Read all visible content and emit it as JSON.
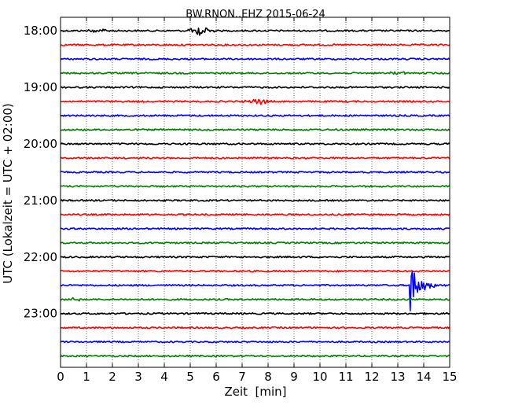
{
  "chart_data": {
    "type": "line",
    "title": "BW.RNON..EHZ 2015-06-24",
    "xlabel": "Zeit  [min]",
    "ylabel": "UTC (Lokalzeit = UTC + 02:00)",
    "xlim": [
      0,
      15
    ],
    "x_ticks": [
      "0",
      "1",
      "2",
      "3",
      "4",
      "5",
      "6",
      "7",
      "8",
      "9",
      "10",
      "11",
      "12",
      "13",
      "14",
      "15"
    ],
    "row_minutes": 15,
    "start_time": "18:00",
    "end_time": "24:00",
    "y_tick_labels": [
      "18:00",
      "19:00",
      "20:00",
      "21:00",
      "22:00",
      "23:00"
    ],
    "grid": "vertical dotted at each minute",
    "trace_colors": [
      "#000000",
      "#ff0000",
      "#0000ff",
      "#008000"
    ],
    "traces": [
      {
        "start": "18:00",
        "color": "#000000",
        "events": [
          {
            "minute": 5.4,
            "amplitude": 0.35
          },
          {
            "minute": 1.5,
            "amplitude": 0.15
          }
        ]
      },
      {
        "start": "18:15",
        "color": "#ff0000",
        "events": []
      },
      {
        "start": "18:30",
        "color": "#0000ff",
        "events": []
      },
      {
        "start": "18:45",
        "color": "#008000",
        "events": [
          {
            "minute": 13.0,
            "amplitude": 0.12
          }
        ]
      },
      {
        "start": "19:00",
        "color": "#000000",
        "events": []
      },
      {
        "start": "19:15",
        "color": "#ff0000",
        "events": [
          {
            "minute": 7.6,
            "amplitude": 0.25
          }
        ]
      },
      {
        "start": "19:30",
        "color": "#0000ff",
        "events": []
      },
      {
        "start": "19:45",
        "color": "#008000",
        "events": []
      },
      {
        "start": "20:00",
        "color": "#000000",
        "events": []
      },
      {
        "start": "20:15",
        "color": "#ff0000",
        "events": []
      },
      {
        "start": "20:30",
        "color": "#0000ff",
        "events": []
      },
      {
        "start": "20:45",
        "color": "#008000",
        "events": []
      },
      {
        "start": "21:00",
        "color": "#000000",
        "events": []
      },
      {
        "start": "21:15",
        "color": "#ff0000",
        "events": []
      },
      {
        "start": "21:30",
        "color": "#0000ff",
        "events": []
      },
      {
        "start": "21:45",
        "color": "#008000",
        "events": []
      },
      {
        "start": "22:00",
        "color": "#000000",
        "events": []
      },
      {
        "start": "22:15",
        "color": "#ff0000",
        "events": []
      },
      {
        "start": "22:30",
        "color": "#0000ff",
        "events": [
          {
            "minute": 13.45,
            "amplitude": 2.3
          }
        ]
      },
      {
        "start": "22:45",
        "color": "#008000",
        "events": [
          {
            "minute": 0.5,
            "amplitude": 0.15
          }
        ]
      },
      {
        "start": "23:00",
        "color": "#000000",
        "events": []
      },
      {
        "start": "23:15",
        "color": "#ff0000",
        "events": []
      },
      {
        "start": "23:30",
        "color": "#0000ff",
        "events": []
      },
      {
        "start": "23:45",
        "color": "#008000",
        "events": []
      }
    ]
  }
}
